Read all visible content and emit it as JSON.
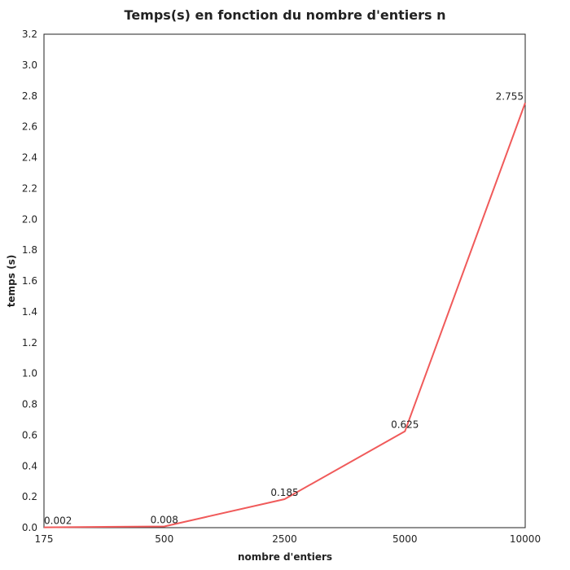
{
  "chart_data": {
    "type": "line",
    "title": "Temps(s) en fonction du nombre d'entiers n",
    "xlabel": "nombre d'entiers",
    "ylabel": "temps (s)",
    "categories": [
      "175",
      "500",
      "2500",
      "5000",
      "10000"
    ],
    "series": [
      {
        "values": [
          0.002,
          0.008,
          0.185,
          0.625,
          2.755
        ],
        "labels": [
          "0.002",
          "0.008",
          "0.185",
          "0.625",
          "2.755"
        ],
        "color": "#f05a5a"
      }
    ],
    "y_ticks": [
      "0.0",
      "0.2",
      "0.4",
      "0.6",
      "0.8",
      "1.0",
      "1.2",
      "1.4",
      "1.6",
      "1.8",
      "2.0",
      "2.2",
      "2.4",
      "2.6",
      "2.8",
      "3.0",
      "3.2"
    ],
    "ylim": [
      0,
      3.2
    ],
    "grid": false,
    "legend": false,
    "colors": {
      "axis": "#222222",
      "line": "#f05a5a"
    }
  }
}
